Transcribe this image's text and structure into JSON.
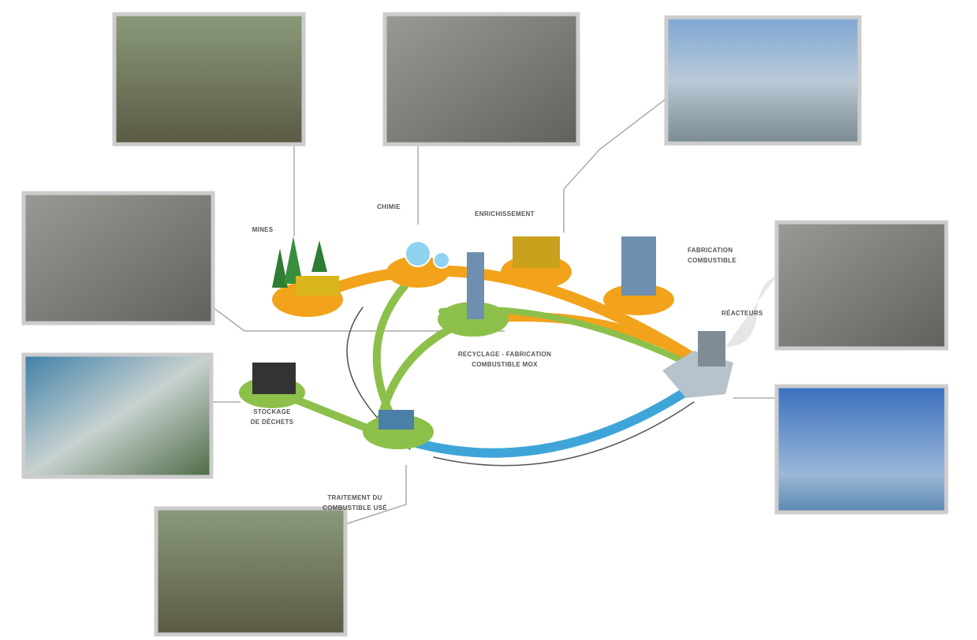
{
  "nodes": [
    {
      "lines": [
        "MINES"
      ]
    },
    {
      "lines": [
        "CHIMIE"
      ]
    },
    {
      "lines": [
        "ENRICHISSEMENT"
      ]
    },
    {
      "lines": [
        "FABRICATION",
        "COMBUSTIBLE"
      ]
    },
    {
      "lines": [
        "RÉACTEURS"
      ]
    },
    {
      "lines": [
        "RECYCLAGE - FABRICATION",
        "COMBUSTIBLE MOX"
      ]
    },
    {
      "lines": [
        "STOCKAGE",
        "DE DÉCHETS"
      ]
    },
    {
      "lines": [
        "TRAITEMENT DU",
        "COMBUSTIBLE USÉ"
      ]
    }
  ]
}
